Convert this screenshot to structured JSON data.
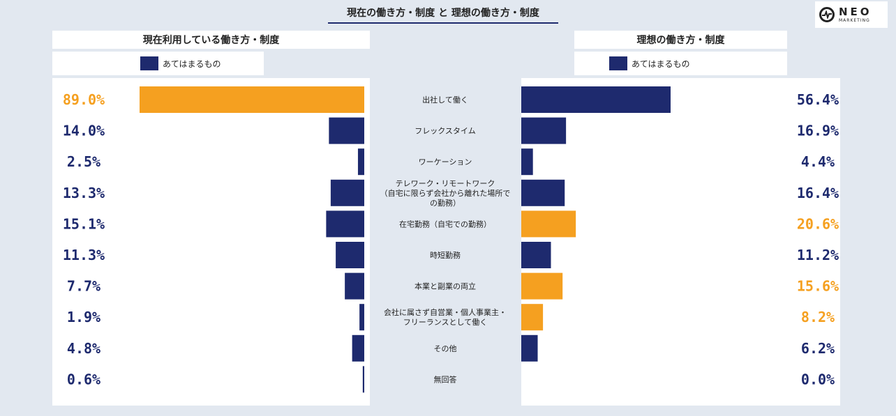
{
  "title": "現在の働き方・制度 と 理想の働き方・制度",
  "logo": {
    "main": "NEO",
    "sub": "MARKETING"
  },
  "left_panel": {
    "header": "現在利用している働き方・制度",
    "legend": "あてはまるもの"
  },
  "right_panel": {
    "header": "理想の働き方・制度",
    "legend": "あてはまるもの"
  },
  "colors": {
    "navy": "#1e2a6e",
    "orange": "#f5a020"
  },
  "chart_data": {
    "type": "bar",
    "categories": [
      [
        "出社して働く"
      ],
      [
        "フレックスタイム"
      ],
      [
        "ワーケーション"
      ],
      [
        "テレワーク・リモートワーク",
        "（自宅に限らず会社から離れた場所で",
        "の勤務）"
      ],
      [
        "在宅勤務（自宅での勤務）"
      ],
      [
        "時短勤務"
      ],
      [
        "本業と副業の両立"
      ],
      [
        "会社に属さず自営業・個人事業主・",
        "フリーランスとして働く"
      ],
      [
        "その他"
      ],
      [
        "無回答"
      ]
    ],
    "series": [
      {
        "name": "現在利用している働き方・制度",
        "values": [
          89.0,
          14.0,
          2.5,
          13.3,
          15.1,
          11.3,
          7.7,
          1.9,
          4.8,
          0.6
        ],
        "labels": [
          "89.0%",
          "14.0%",
          "2.5%",
          "13.3%",
          "15.1%",
          "11.3%",
          "7.7%",
          "1.9%",
          "4.8%",
          "0.6%"
        ],
        "highlight": [
          0
        ]
      },
      {
        "name": "理想の働き方・制度",
        "values": [
          56.4,
          16.9,
          4.4,
          16.4,
          20.6,
          11.2,
          15.6,
          8.2,
          6.2,
          0.0
        ],
        "labels": [
          "56.4%",
          "16.9%",
          "4.4%",
          "16.4%",
          "20.6%",
          "11.2%",
          "15.6%",
          "8.2%",
          "6.2%",
          "0.0%"
        ],
        "highlight": [
          4,
          6,
          7
        ]
      }
    ]
  }
}
